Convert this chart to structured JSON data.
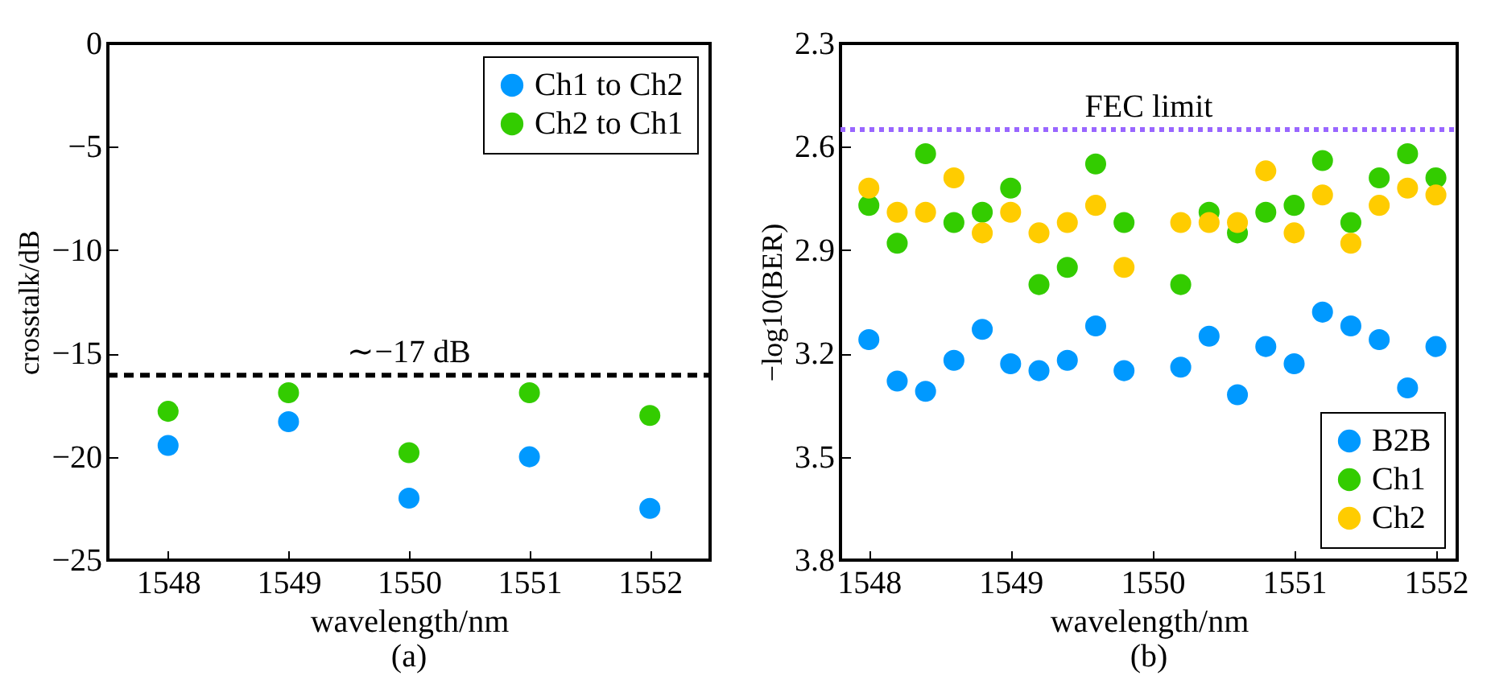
{
  "chart_data": [
    {
      "type": "scatter",
      "x": [
        1548,
        1549,
        1550,
        1551,
        1552
      ],
      "xlabel": "wavelength/nm",
      "ylabel": "crosstalk/dB",
      "xlim": [
        1547.5,
        1552.5
      ],
      "xticks": [
        1548,
        1549,
        1550,
        1551,
        1552
      ],
      "ylim": [
        -25,
        0
      ],
      "yticks": [
        -25,
        -20,
        -15,
        -10,
        -5,
        0
      ],
      "legend": "top right",
      "marker": "circle",
      "series": [
        {
          "name": "Ch1 to Ch2",
          "color": "#0099ff",
          "values": [
            -19.45,
            -18.3,
            -22.0,
            -20.0,
            -22.5
          ]
        },
        {
          "name": "Ch2 to Ch1",
          "color": "#33cc00",
          "values": [
            -17.8,
            -16.9,
            -19.8,
            -16.9,
            -18.0
          ]
        }
      ],
      "ref_lines": [
        {
          "axis": "y",
          "value": -16.05,
          "label": "∼−17 dB",
          "color": "#000000",
          "line_style": "dashed"
        }
      ],
      "annotations": [
        "(a)"
      ]
    },
    {
      "type": "scatter",
      "x": [
        1548,
        1548.2,
        1548.4,
        1548.6,
        1548.8,
        1549,
        1549.2,
        1549.4,
        1549.6,
        1549.8,
        1550,
        1550.2,
        1550.4,
        1550.6,
        1550.8,
        1551,
        1551.2,
        1551.4,
        1551.6,
        1551.8,
        1552
      ],
      "xlabel": "wavelength/nm",
      "ylabel": "−log10(BER)",
      "xlim": [
        1547.8,
        1552.15
      ],
      "xticks": [
        1548,
        1549,
        1550,
        1551,
        1552
      ],
      "ylim": [
        3.8,
        2.3
      ],
      "yticks": [
        2.3,
        2.6,
        2.9,
        3.2,
        3.5,
        3.8
      ],
      "legend": "bottom right",
      "marker": "circle",
      "series": [
        {
          "name": "B2B",
          "color": "#0099ff",
          "values": [
            3.16,
            3.28,
            3.31,
            3.22,
            3.13,
            3.23,
            3.25,
            3.22,
            3.12,
            3.25,
            null,
            3.24,
            3.15,
            3.32,
            3.18,
            3.23,
            3.08,
            3.12,
            3.16,
            3.3,
            3.18
          ]
        },
        {
          "name": "Ch1",
          "color": "#33cc00",
          "values": [
            2.77,
            2.88,
            2.62,
            2.82,
            2.79,
            2.72,
            3.0,
            2.95,
            2.65,
            2.82,
            null,
            3.0,
            2.79,
            2.85,
            2.79,
            2.77,
            2.64,
            2.82,
            2.69,
            2.62,
            2.69
          ]
        },
        {
          "name": "Ch2",
          "color": "#ffcc00",
          "values": [
            2.72,
            2.79,
            2.79,
            2.69,
            2.85,
            2.79,
            2.85,
            2.82,
            2.77,
            2.95,
            null,
            2.82,
            2.82,
            2.82,
            2.67,
            2.85,
            2.74,
            2.88,
            2.77,
            2.72,
            2.74
          ]
        }
      ],
      "ref_lines": [
        {
          "axis": "y",
          "value": 2.55,
          "label": "FEC limit",
          "color": "#9966ff",
          "line_style": "dotted"
        }
      ],
      "annotations": [
        "(b)"
      ]
    }
  ]
}
